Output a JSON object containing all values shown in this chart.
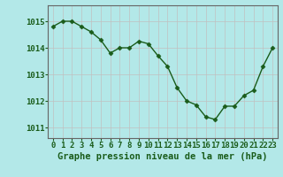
{
  "x": [
    0,
    1,
    2,
    3,
    4,
    5,
    6,
    7,
    8,
    9,
    10,
    11,
    12,
    13,
    14,
    15,
    16,
    17,
    18,
    19,
    20,
    21,
    22,
    23
  ],
  "y": [
    1014.8,
    1015.0,
    1015.0,
    1014.8,
    1014.6,
    1014.3,
    1013.8,
    1014.0,
    1014.0,
    1014.25,
    1014.15,
    1013.7,
    1013.3,
    1012.5,
    1012.0,
    1011.85,
    1011.4,
    1011.3,
    1011.8,
    1011.8,
    1012.2,
    1012.4,
    1013.3,
    1014.0
  ],
  "line_color": "#1a5c1a",
  "marker": "D",
  "marker_size": 2.5,
  "bg_color": "#b3e8e8",
  "grid_color": "#c0c0c0",
  "xlabel": "Graphe pression niveau de la mer (hPa)",
  "xlabel_color": "#1a5c1a",
  "xlabel_fontsize": 7.5,
  "ylabel_ticks": [
    1011,
    1012,
    1013,
    1014,
    1015
  ],
  "xlim": [
    -0.5,
    23.5
  ],
  "ylim": [
    1010.6,
    1015.6
  ],
  "tick_color": "#1a5c1a",
  "tick_fontsize": 6.5,
  "spine_color": "#666666",
  "axis_label_weight": "bold",
  "linewidth": 1.0
}
